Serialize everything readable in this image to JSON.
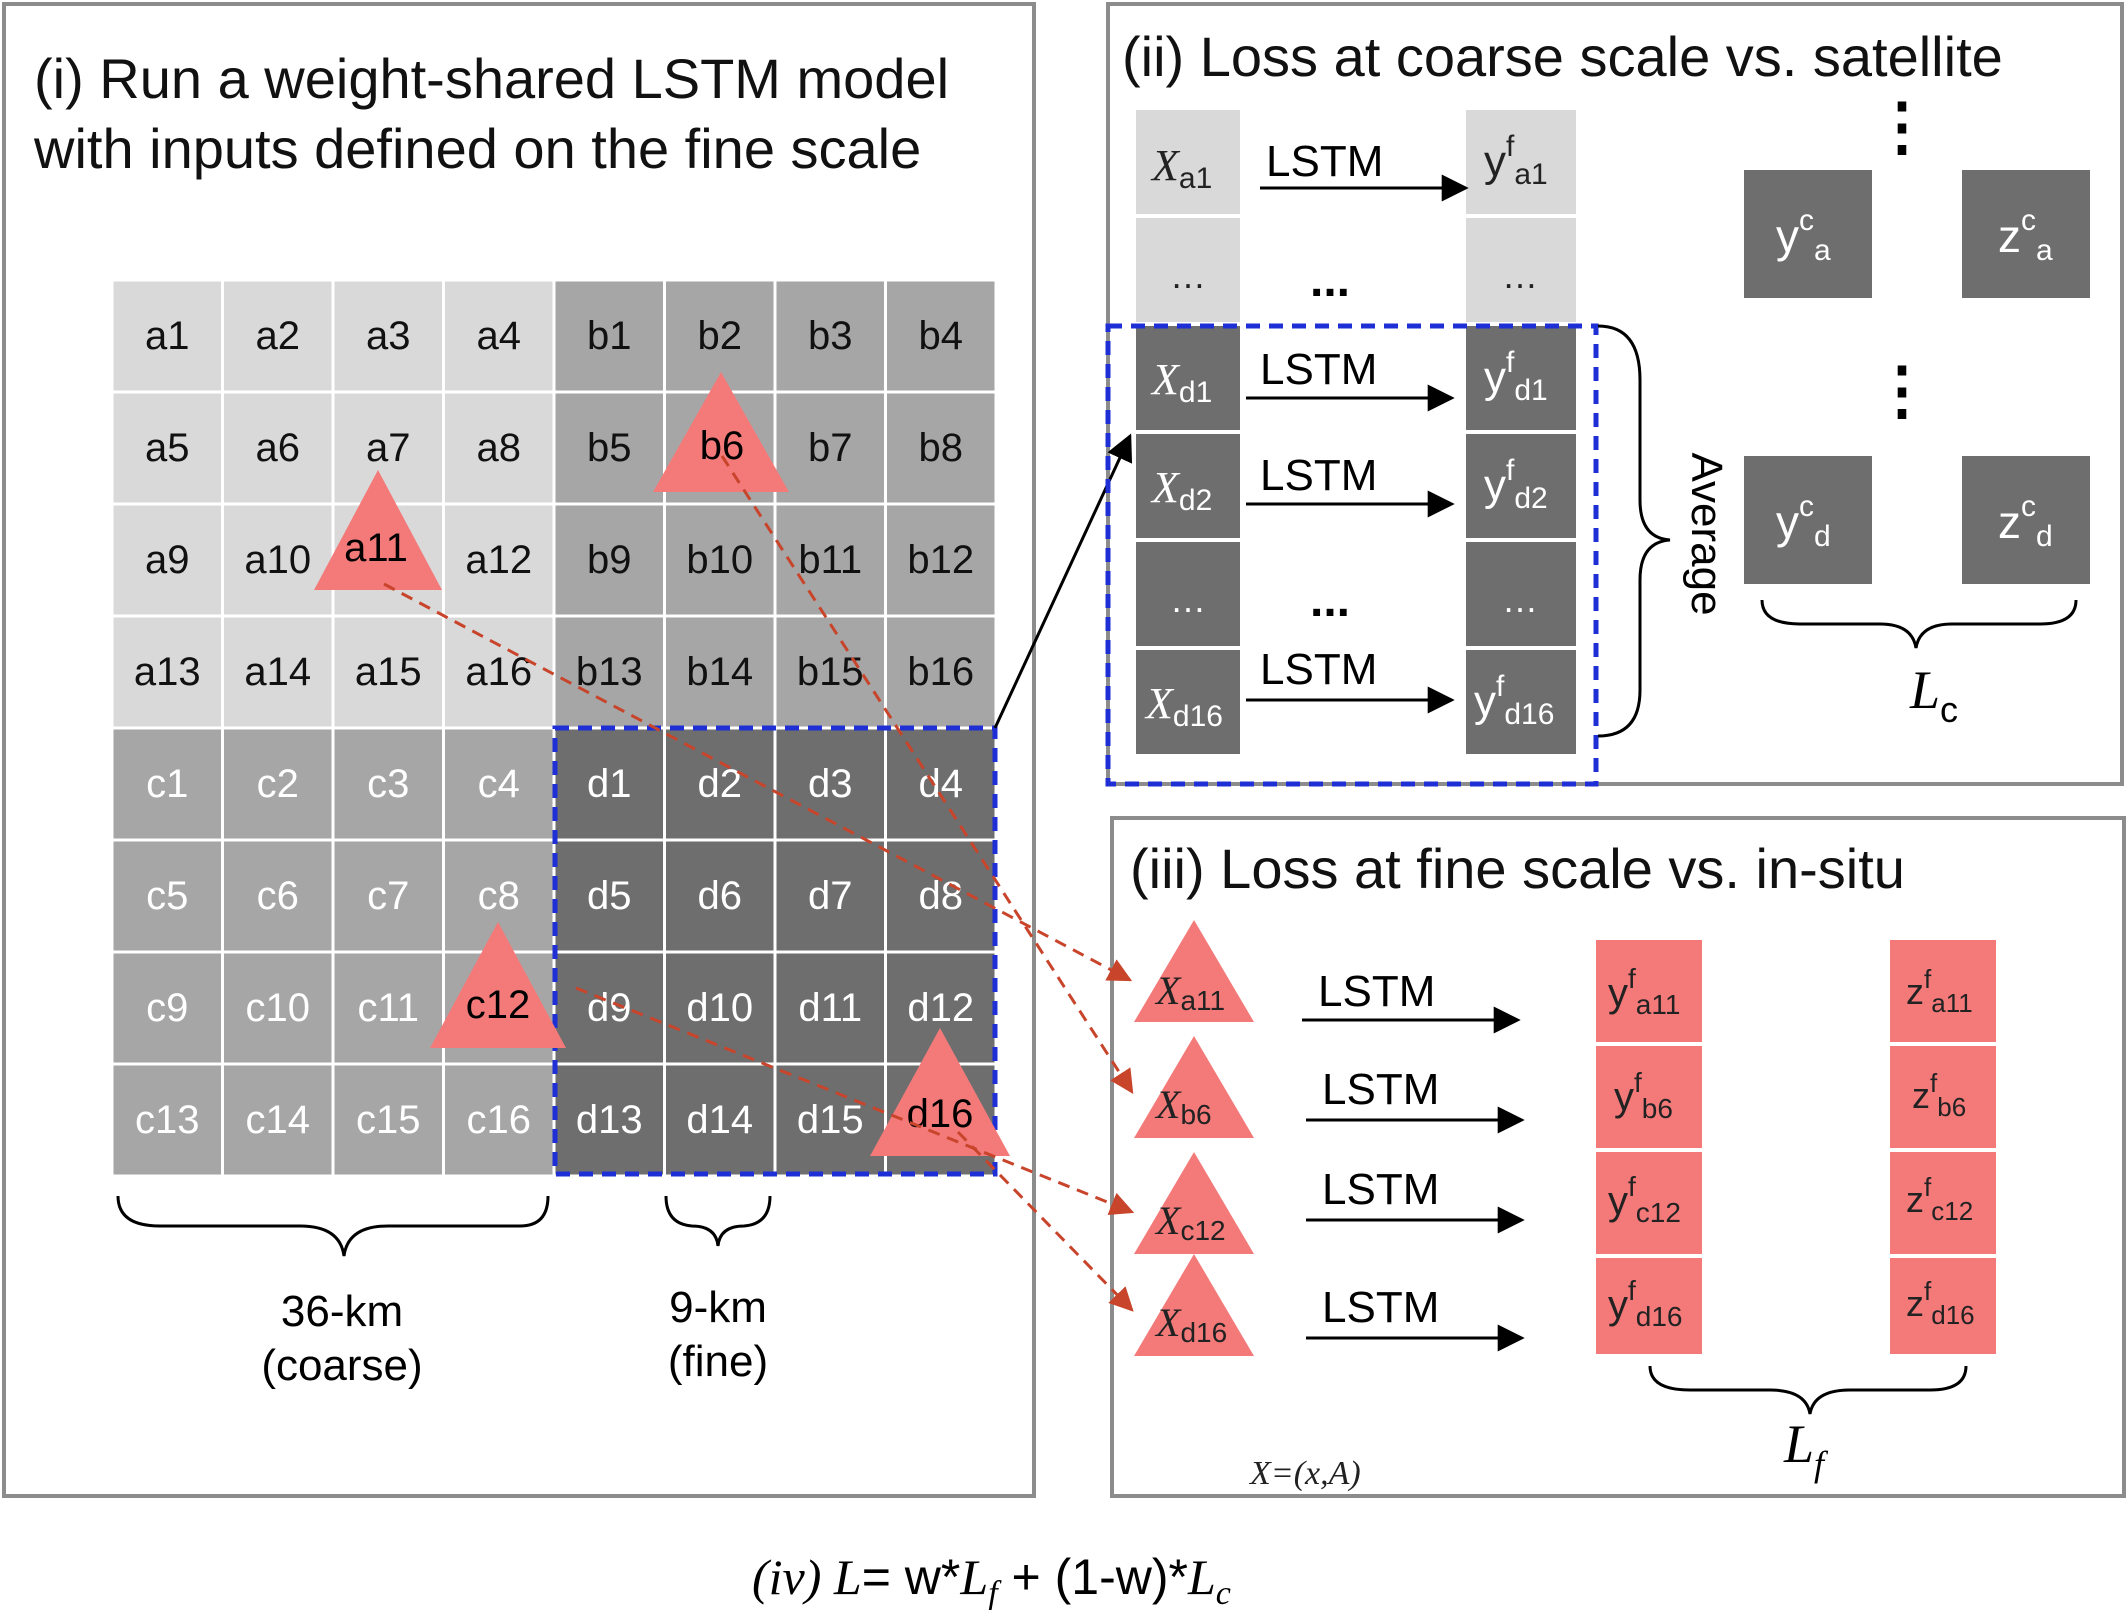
{
  "panel_i": {
    "title_line1": "(i) Run a weight-shared LSTM model",
    "title_line2": "with inputs defined on the fine scale",
    "grid_rows": [
      [
        "a1",
        "a2",
        "a3",
        "a4",
        "b1",
        "b2",
        "b3",
        "b4"
      ],
      [
        "a5",
        "a6",
        "a7",
        "a8",
        "b5",
        "b6",
        "b7",
        "b8"
      ],
      [
        "a9",
        "a10",
        "a11",
        "a12",
        "b9",
        "b10",
        "b11",
        "b12"
      ],
      [
        "a13",
        "a14",
        "a15",
        "a16",
        "b13",
        "b14",
        "b15",
        "b16"
      ],
      [
        "c1",
        "c2",
        "c3",
        "c4",
        "d1",
        "d2",
        "d3",
        "d4"
      ],
      [
        "c5",
        "c6",
        "c7",
        "c8",
        "d5",
        "d6",
        "d7",
        "d8"
      ],
      [
        "c9",
        "c10",
        "c11",
        "c12",
        "d9",
        "d10",
        "d11",
        "d12"
      ],
      [
        "c13",
        "c14",
        "c15",
        "c16",
        "d13",
        "d14",
        "d15",
        "d16"
      ]
    ],
    "coarse_label_1": "36-km",
    "coarse_label_2": "(coarse)",
    "fine_label_1": "9-km",
    "fine_label_2": "(fine)"
  },
  "panel_ii": {
    "title": "(ii) Loss at coarse scale vs. satellite",
    "lstm": "LSTM",
    "ellipsis": "…",
    "mid_ellipsis": "...",
    "vdots": "⋮",
    "average": "Average",
    "rows": [
      {
        "x": "X",
        "x_sub": "a1",
        "y": "y",
        "y_sup": "f",
        "y_sub": "a1"
      },
      {
        "x": "X",
        "x_sub": "d1",
        "y": "y",
        "y_sup": "f",
        "y_sub": "d1"
      },
      {
        "x": "X",
        "x_sub": "d2",
        "y": "y",
        "y_sup": "f",
        "y_sub": "d2"
      },
      {
        "x": "X",
        "x_sub": "d16",
        "y": "y",
        "y_sup": "f",
        "y_sub": "d16"
      }
    ],
    "coarse_boxes": [
      {
        "base": "y",
        "sup": "c",
        "sub": "a"
      },
      {
        "base": "z",
        "sup": "c",
        "sub": "a"
      },
      {
        "base": "y",
        "sup": "c",
        "sub": "d"
      },
      {
        "base": "z",
        "sup": "c",
        "sub": "d"
      }
    ],
    "loss_base": "L",
    "loss_sub": "c"
  },
  "panel_iii": {
    "title": "(iii) Loss at fine scale vs. in-situ",
    "lstm": "LSTM",
    "rows": [
      {
        "x": "X",
        "x_sub": "a11",
        "y": "y",
        "z": "z",
        "sup": "f",
        "sub": "a11"
      },
      {
        "x": "X",
        "x_sub": "b6",
        "y": "y",
        "z": "z",
        "sup": "f",
        "sub": "b6"
      },
      {
        "x": "X",
        "x_sub": "c12",
        "y": "y",
        "z": "z",
        "sup": "f",
        "sub": "c12"
      },
      {
        "x": "X",
        "x_sub": "d16",
        "y": "y",
        "z": "z",
        "sup": "f",
        "sub": "d16"
      }
    ],
    "loss_base": "L",
    "loss_sub": "f",
    "x_def": "X=(x,A)"
  },
  "panel_iv": {
    "prefix": "(iv) ",
    "L": "L",
    "eq_part1": "= w*",
    "Lf_base": "L",
    "Lf_sub": "f",
    "eq_part2": " + (1-w)*",
    "Lc_base": "L",
    "Lc_sub": "c"
  },
  "colors": {
    "light_cell": "#d9d9d9",
    "mid_cell": "#b3b3b3",
    "dark_cell": "#a6a6a6",
    "darker_cell": "#6e6e6e",
    "pink": "#f47a7a",
    "dashed_blue": "#1f2fd6",
    "dashed_red": "#c8452c"
  }
}
